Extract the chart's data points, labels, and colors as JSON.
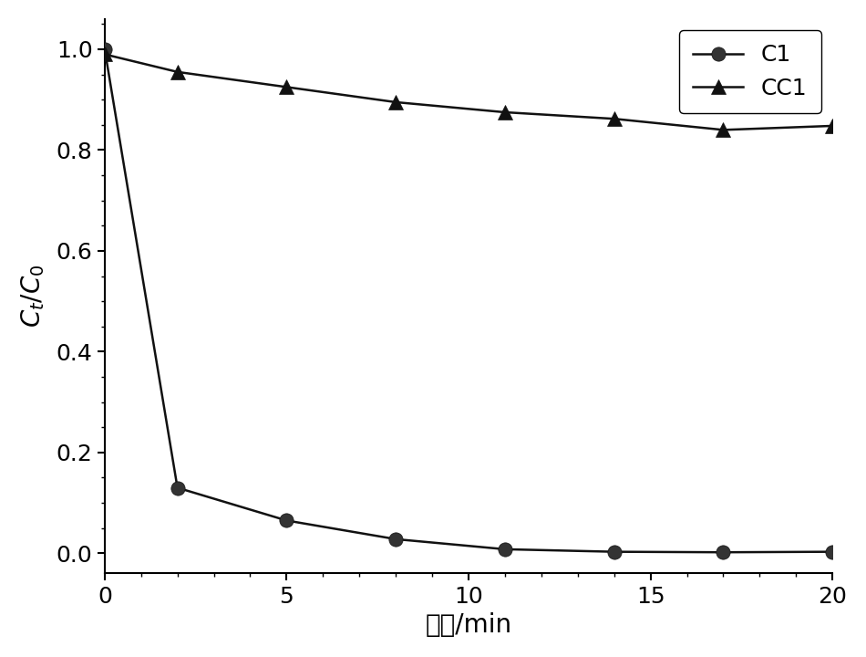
{
  "C1_x": [
    0,
    2,
    5,
    8,
    11,
    14,
    17,
    20
  ],
  "C1_y": [
    1.0,
    0.13,
    0.065,
    0.028,
    0.008,
    0.003,
    0.002,
    0.003
  ],
  "CC1_x": [
    0,
    2,
    5,
    8,
    11,
    14,
    17,
    20
  ],
  "CC1_y": [
    0.99,
    0.955,
    0.925,
    0.895,
    0.875,
    0.862,
    0.84,
    0.848
  ],
  "xlabel": "时间/min",
  "xlim": [
    0,
    20
  ],
  "ylim": [
    -0.04,
    1.06
  ],
  "xticks": [
    0,
    5,
    10,
    15,
    20
  ],
  "yticks": [
    0.0,
    0.2,
    0.4,
    0.6,
    0.8,
    1.0
  ],
  "line_color": "#111111",
  "background_color": "#ffffff",
  "legend_C1": "C1",
  "legend_CC1": "CC1",
  "label_fontsize": 20,
  "tick_fontsize": 18,
  "legend_fontsize": 18,
  "linewidth": 1.8,
  "marker_size_circle": 11,
  "marker_size_triangle": 12
}
